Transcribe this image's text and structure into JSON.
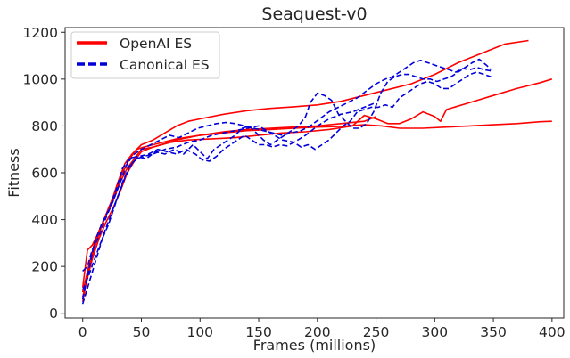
{
  "chart_data": {
    "type": "line",
    "title": "Seaquest-v0",
    "xlabel": "Frames (millions)",
    "ylabel": "Fitness",
    "xlim": [
      -15,
      410
    ],
    "ylim": [
      -20,
      1220
    ],
    "xticks": [
      0,
      50,
      100,
      150,
      200,
      250,
      300,
      350,
      400
    ],
    "yticks": [
      0,
      200,
      400,
      600,
      800,
      1000,
      1200
    ],
    "grid": false,
    "legend_position": "top-left",
    "legend": [
      {
        "label": "OpenAI ES",
        "color": "#ff0000",
        "dash": "solid"
      },
      {
        "label": "Canonical ES",
        "color": "#0000dd",
        "dash": "dashed"
      }
    ],
    "series": [
      {
        "group": "OpenAI ES",
        "color": "#ff0000",
        "dash": "solid",
        "points": [
          [
            0,
            110
          ],
          [
            4,
            270
          ],
          [
            8,
            290
          ],
          [
            12,
            330
          ],
          [
            18,
            400
          ],
          [
            24,
            470
          ],
          [
            30,
            560
          ],
          [
            36,
            640
          ],
          [
            42,
            680
          ],
          [
            50,
            720
          ],
          [
            60,
            740
          ],
          [
            70,
            770
          ],
          [
            80,
            800
          ],
          [
            90,
            820
          ],
          [
            100,
            830
          ],
          [
            120,
            850
          ],
          [
            140,
            865
          ],
          [
            160,
            875
          ],
          [
            180,
            882
          ],
          [
            200,
            890
          ],
          [
            220,
            905
          ],
          [
            240,
            930
          ],
          [
            260,
            955
          ],
          [
            280,
            980
          ],
          [
            300,
            1020
          ],
          [
            320,
            1070
          ],
          [
            340,
            1110
          ],
          [
            360,
            1150
          ],
          [
            380,
            1165
          ]
        ]
      },
      {
        "group": "OpenAI ES",
        "color": "#ff0000",
        "dash": "solid",
        "points": [
          [
            0,
            90
          ],
          [
            5,
            200
          ],
          [
            10,
            300
          ],
          [
            15,
            360
          ],
          [
            20,
            420
          ],
          [
            26,
            480
          ],
          [
            32,
            560
          ],
          [
            38,
            620
          ],
          [
            44,
            660
          ],
          [
            50,
            700
          ],
          [
            60,
            710
          ],
          [
            75,
            730
          ],
          [
            90,
            740
          ],
          [
            110,
            745
          ],
          [
            130,
            750
          ],
          [
            150,
            760
          ],
          [
            170,
            770
          ],
          [
            190,
            775
          ],
          [
            210,
            785
          ],
          [
            230,
            800
          ],
          [
            240,
            845
          ],
          [
            250,
            830
          ],
          [
            260,
            810
          ],
          [
            270,
            810
          ],
          [
            280,
            830
          ],
          [
            290,
            860
          ],
          [
            300,
            840
          ],
          [
            305,
            820
          ],
          [
            310,
            870
          ],
          [
            330,
            900
          ],
          [
            350,
            930
          ],
          [
            370,
            960
          ],
          [
            390,
            985
          ],
          [
            400,
            1000
          ]
        ]
      },
      {
        "group": "OpenAI ES",
        "color": "#ff0000",
        "dash": "solid",
        "points": [
          [
            0,
            70
          ],
          [
            4,
            150
          ],
          [
            8,
            230
          ],
          [
            14,
            320
          ],
          [
            20,
            390
          ],
          [
            26,
            450
          ],
          [
            32,
            520
          ],
          [
            38,
            600
          ],
          [
            44,
            650
          ],
          [
            50,
            690
          ],
          [
            60,
            710
          ],
          [
            80,
            740
          ],
          [
            100,
            760
          ],
          [
            120,
            770
          ],
          [
            140,
            780
          ],
          [
            160,
            785
          ],
          [
            180,
            790
          ],
          [
            200,
            795
          ],
          [
            220,
            798
          ],
          [
            240,
            805
          ],
          [
            255,
            800
          ],
          [
            270,
            790
          ],
          [
            290,
            790
          ],
          [
            310,
            795
          ],
          [
            330,
            800
          ],
          [
            350,
            805
          ],
          [
            370,
            810
          ],
          [
            390,
            818
          ],
          [
            400,
            820
          ]
        ]
      },
      {
        "group": "OpenAI ES",
        "color": "#ff0000",
        "dash": "solid",
        "points": [
          [
            0,
            50
          ],
          [
            5,
            180
          ],
          [
            10,
            280
          ],
          [
            16,
            370
          ],
          [
            22,
            450
          ],
          [
            28,
            520
          ],
          [
            34,
            600
          ],
          [
            40,
            660
          ],
          [
            46,
            700
          ],
          [
            52,
            710
          ],
          [
            60,
            720
          ],
          [
            80,
            745
          ],
          [
            100,
            760
          ],
          [
            120,
            775
          ],
          [
            140,
            785
          ],
          [
            160,
            790
          ],
          [
            180,
            795
          ],
          [
            200,
            800
          ],
          [
            220,
            810
          ],
          [
            240,
            820
          ],
          [
            250,
            840
          ]
        ]
      },
      {
        "group": "Canonical ES",
        "color": "#0000dd",
        "dash": "dashed",
        "points": [
          [
            0,
            60
          ],
          [
            5,
            180
          ],
          [
            10,
            300
          ],
          [
            16,
            380
          ],
          [
            22,
            440
          ],
          [
            28,
            520
          ],
          [
            34,
            620
          ],
          [
            40,
            660
          ],
          [
            46,
            670
          ],
          [
            54,
            660
          ],
          [
            62,
            690
          ],
          [
            70,
            680
          ],
          [
            78,
            700
          ],
          [
            86,
            680
          ],
          [
            94,
            720
          ],
          [
            100,
            690
          ],
          [
            106,
            660
          ],
          [
            112,
            700
          ],
          [
            118,
            720
          ],
          [
            124,
            740
          ],
          [
            130,
            760
          ],
          [
            136,
            790
          ],
          [
            142,
            800
          ],
          [
            148,
            770
          ],
          [
            154,
            740
          ],
          [
            160,
            720
          ],
          [
            166,
            740
          ],
          [
            172,
            760
          ],
          [
            178,
            780
          ],
          [
            184,
            800
          ],
          [
            190,
            840
          ],
          [
            194,
            900
          ],
          [
            200,
            940
          ],
          [
            206,
            930
          ],
          [
            212,
            910
          ],
          [
            218,
            850
          ],
          [
            224,
            820
          ],
          [
            230,
            790
          ],
          [
            236,
            790
          ],
          [
            242,
            810
          ],
          [
            248,
            860
          ],
          [
            254,
            940
          ],
          [
            260,
            990
          ],
          [
            266,
            1010
          ],
          [
            272,
            1020
          ],
          [
            278,
            1020
          ],
          [
            284,
            1010
          ],
          [
            290,
            1000
          ],
          [
            296,
            1000
          ],
          [
            302,
            990
          ],
          [
            308,
            1000
          ],
          [
            314,
            1010
          ],
          [
            320,
            1030
          ],
          [
            326,
            1050
          ],
          [
            332,
            1070
          ],
          [
            338,
            1085
          ],
          [
            344,
            1060
          ],
          [
            348,
            1040
          ]
        ]
      },
      {
        "group": "Canonical ES",
        "color": "#0000dd",
        "dash": "dashed",
        "points": [
          [
            0,
            40
          ],
          [
            6,
            140
          ],
          [
            12,
            240
          ],
          [
            18,
            340
          ],
          [
            24,
            420
          ],
          [
            30,
            500
          ],
          [
            36,
            580
          ],
          [
            42,
            640
          ],
          [
            48,
            670
          ],
          [
            56,
            680
          ],
          [
            64,
            700
          ],
          [
            72,
            690
          ],
          [
            80,
            680
          ],
          [
            88,
            700
          ],
          [
            96,
            680
          ],
          [
            102,
            655
          ],
          [
            108,
            650
          ],
          [
            114,
            670
          ],
          [
            120,
            700
          ],
          [
            126,
            720
          ],
          [
            132,
            740
          ],
          [
            138,
            760
          ],
          [
            144,
            740
          ],
          [
            150,
            720
          ],
          [
            156,
            720
          ],
          [
            162,
            710
          ],
          [
            168,
            720
          ],
          [
            174,
            715
          ],
          [
            180,
            730
          ],
          [
            186,
            710
          ],
          [
            192,
            720
          ],
          [
            198,
            700
          ],
          [
            204,
            720
          ],
          [
            210,
            740
          ],
          [
            216,
            770
          ],
          [
            222,
            800
          ],
          [
            228,
            820
          ],
          [
            234,
            860
          ],
          [
            240,
            870
          ],
          [
            246,
            880
          ],
          [
            252,
            880
          ],
          [
            258,
            890
          ],
          [
            264,
            880
          ],
          [
            270,
            920
          ],
          [
            276,
            940
          ],
          [
            282,
            960
          ],
          [
            288,
            980
          ],
          [
            294,
            990
          ],
          [
            300,
            980
          ],
          [
            306,
            960
          ],
          [
            312,
            960
          ],
          [
            318,
            980
          ],
          [
            324,
            1000
          ],
          [
            330,
            1020
          ],
          [
            336,
            1030
          ],
          [
            342,
            1020
          ],
          [
            348,
            1010
          ]
        ]
      },
      {
        "group": "Canonical ES",
        "color": "#0000dd",
        "dash": "dashed",
        "points": [
          [
            0,
            180
          ],
          [
            4,
            200
          ],
          [
            8,
            270
          ],
          [
            14,
            330
          ],
          [
            20,
            410
          ],
          [
            26,
            480
          ],
          [
            32,
            560
          ],
          [
            38,
            640
          ],
          [
            44,
            680
          ],
          [
            50,
            700
          ],
          [
            58,
            720
          ],
          [
            66,
            740
          ],
          [
            74,
            760
          ],
          [
            82,
            750
          ],
          [
            90,
            770
          ],
          [
            98,
            790
          ],
          [
            106,
            800
          ],
          [
            114,
            810
          ],
          [
            122,
            815
          ],
          [
            130,
            810
          ],
          [
            138,
            800
          ],
          [
            146,
            790
          ],
          [
            154,
            780
          ],
          [
            162,
            770
          ],
          [
            170,
            760
          ],
          [
            178,
            770
          ],
          [
            186,
            780
          ],
          [
            194,
            800
          ],
          [
            202,
            830
          ],
          [
            210,
            860
          ],
          [
            218,
            880
          ],
          [
            226,
            900
          ],
          [
            234,
            920
          ],
          [
            242,
            950
          ],
          [
            250,
            980
          ],
          [
            258,
            1000
          ],
          [
            264,
            1010
          ],
          [
            270,
            1030
          ],
          [
            276,
            1050
          ],
          [
            282,
            1070
          ],
          [
            288,
            1080
          ],
          [
            294,
            1070
          ],
          [
            300,
            1060
          ],
          [
            306,
            1050
          ],
          [
            312,
            1040
          ],
          [
            318,
            1030
          ],
          [
            324,
            1045
          ],
          [
            330,
            1040
          ],
          [
            336,
            1050
          ],
          [
            342,
            1040
          ],
          [
            348,
            1035
          ]
        ]
      },
      {
        "group": "Canonical ES",
        "color": "#0000dd",
        "dash": "dashed",
        "points": [
          [
            0,
            100
          ],
          [
            5,
            160
          ],
          [
            10,
            230
          ],
          [
            16,
            310
          ],
          [
            22,
            380
          ],
          [
            28,
            470
          ],
          [
            34,
            560
          ],
          [
            40,
            630
          ],
          [
            46,
            660
          ],
          [
            52,
            670
          ],
          [
            60,
            680
          ],
          [
            70,
            700
          ],
          [
            80,
            710
          ],
          [
            90,
            730
          ],
          [
            100,
            740
          ],
          [
            110,
            760
          ],
          [
            120,
            770
          ],
          [
            130,
            780
          ],
          [
            140,
            790
          ],
          [
            150,
            800
          ],
          [
            160,
            770
          ],
          [
            170,
            740
          ],
          [
            180,
            730
          ],
          [
            190,
            760
          ],
          [
            200,
            800
          ],
          [
            210,
            830
          ],
          [
            220,
            850
          ],
          [
            230,
            860
          ],
          [
            240,
            880
          ],
          [
            250,
            900
          ]
        ]
      }
    ]
  }
}
